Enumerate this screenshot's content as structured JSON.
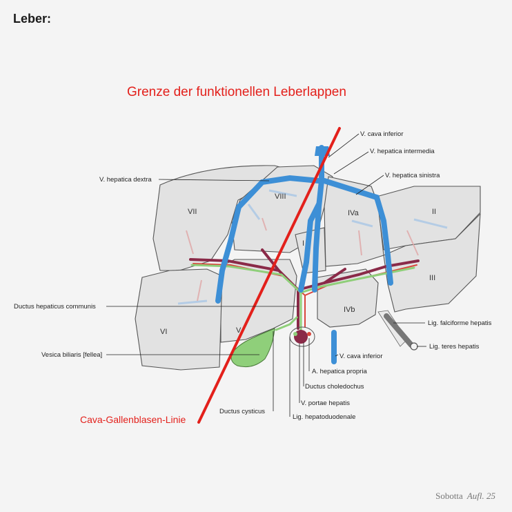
{
  "page": {
    "title": "Leber:",
    "heading": "Grenze der funktionellen Leberlappen",
    "red_line_label": "Cava-Gallenblasen-Linie",
    "credit_name": "Sobotta",
    "credit_edition": "Aufl. 25"
  },
  "segments": {
    "s1": "I",
    "s2": "II",
    "s3": "III",
    "s4a": "IVa",
    "s4b": "IVb",
    "s5": "V",
    "s6": "VI",
    "s7": "VII",
    "s8": "VIII"
  },
  "labels": {
    "v_cava_inferior_top": "V. cava inferior",
    "v_hepatica_intermedia": "V. hepatica intermedia",
    "v_hepatica_sinistra": "V. hepatica sinistra",
    "v_hepatica_dextra": "V. hepatica dextra",
    "ductus_hepaticus_communis": "Ductus hepaticus communis",
    "lig_falciforme": "Lig. falciforme hepatis",
    "lig_teres": "Lig. teres hepatis",
    "vesica_biliaris": "Vesica biliaris [fellea]",
    "v_cava_inferior_bottom": "V. cava inferior",
    "a_hepatica_propria": "A. hepatica propria",
    "ductus_choledochus": "Ductus choledochus",
    "v_portae": "V. portae hepatis",
    "ductus_cysticus": "Ductus cysticus",
    "lig_hepatoduodenale": "Lig. hepatoduodenale"
  },
  "colors": {
    "heading_red": "#e3201b",
    "vein_blue": "#3d8fd6",
    "portal_purple": "#8a2a48",
    "artery_red": "#d9463d",
    "bile_green": "#8fcf7a",
    "liver_fill": "#e2e2e2",
    "background": "#f4f4f4"
  }
}
